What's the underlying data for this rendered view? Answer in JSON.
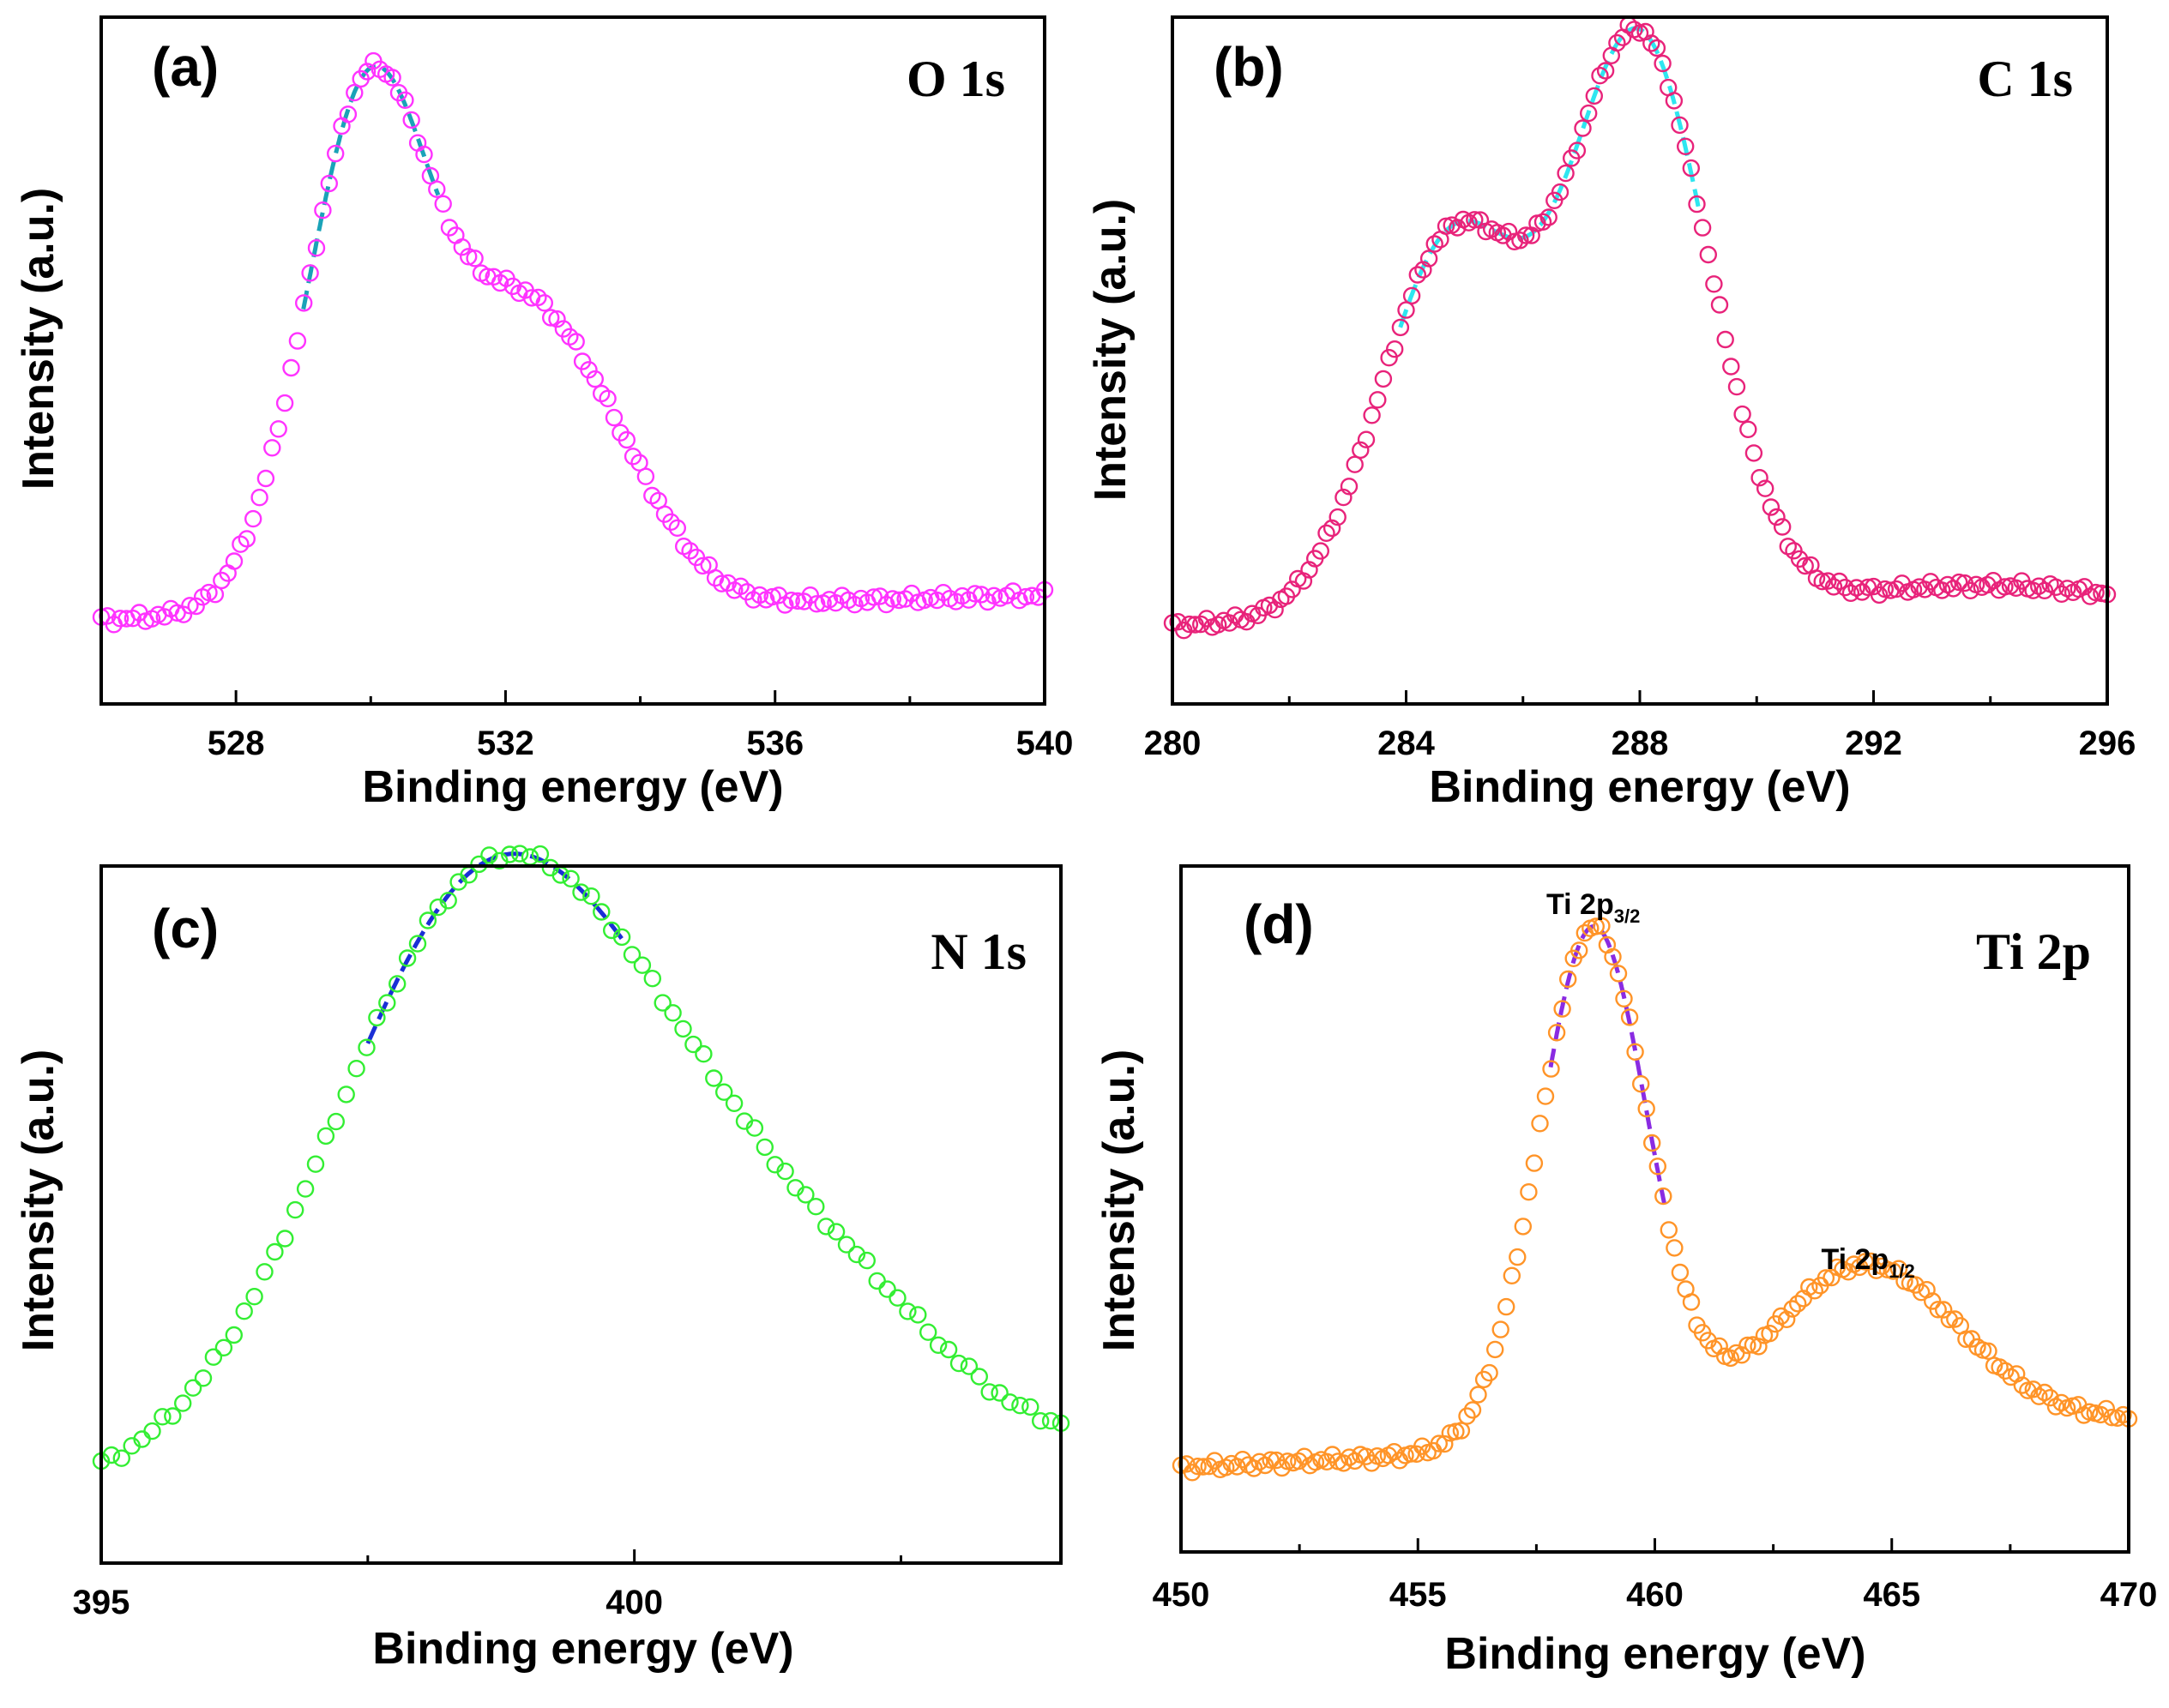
{
  "chart_data": [
    {
      "type": "scatter",
      "panel": "(a)",
      "title": "O 1s",
      "xlabel": "Binding energy (eV)",
      "ylabel": "Intensity (a.u.)",
      "xlim": [
        526,
        540
      ],
      "ylim": [
        0,
        1.14
      ],
      "xticks": [
        528,
        532,
        536,
        540
      ],
      "xtick_labels": [
        "528",
        "532",
        "536",
        "540"
      ],
      "marker_color": "#ff33ff",
      "fit_color": "#1aa3b8",
      "fit_range": [
        529.0,
        531.0
      ],
      "peaks": [
        {
          "center": 530.0,
          "height": 0.88,
          "width": 0.95
        },
        {
          "center": 532.1,
          "height": 0.37,
          "width": 0.9
        },
        {
          "center": 533.4,
          "height": 0.23,
          "width": 0.95
        }
      ],
      "baseline": [
        0.14,
        0.18
      ],
      "n_points": 150,
      "annotations": []
    },
    {
      "type": "scatter",
      "panel": "(b)",
      "title": "C 1s",
      "xlabel": "Binding energy (eV)",
      "ylabel": "Intensity (a.u.)",
      "xlim": [
        280,
        296
      ],
      "ylim": [
        0,
        1.14
      ],
      "xticks": [
        280,
        284,
        288,
        292,
        296
      ],
      "xtick_labels": [
        "280",
        "284",
        "288",
        "292",
        "296"
      ],
      "marker_color": "#e8237a",
      "fit_color": "#2ee6f0",
      "fit_range": [
        283.9,
        289.0
      ],
      "peaks": [
        {
          "center": 284.8,
          "height": 0.63,
          "width": 1.25
        },
        {
          "center": 288.0,
          "height": 0.95,
          "width": 1.2
        },
        {
          "center": 293.6,
          "height": 0.045,
          "width": 2.5
        }
      ],
      "baseline": [
        0.13,
        0.155
      ],
      "n_points": 165,
      "annotations": []
    },
    {
      "type": "scatter",
      "panel": "(c)",
      "title": "N 1s",
      "xlabel": "Binding energy (eV)",
      "ylabel": "Intensity (a.u.)",
      "xlim": [
        395,
        404
      ],
      "ylim": [
        0,
        1.14
      ],
      "xticks": [
        395,
        400
      ],
      "xtick_labels": [
        "395",
        "400"
      ],
      "marker_color": "#33ee33",
      "fit_color": "#1a2fd6",
      "fit_range": [
        397.5,
        399.9
      ],
      "peaks": [
        {
          "center": 398.6,
          "height": 0.93,
          "width": 1.45
        },
        {
          "center": 400.9,
          "height": 0.31,
          "width": 1.3
        },
        {
          "center": 402.4,
          "height": 0.07,
          "width": 0.8
        }
      ],
      "baseline": [
        0.12,
        0.2
      ],
      "n_points": 95,
      "annotations": []
    },
    {
      "type": "scatter",
      "panel": "(d)",
      "title": "Ti 2p",
      "xlabel": "Binding energy (eV)",
      "ylabel": "Intensity (a.u.)",
      "xlim": [
        450,
        470
      ],
      "ylim": [
        0,
        1.14
      ],
      "xticks": [
        450,
        455,
        460,
        465,
        470
      ],
      "xtick_labels": [
        "450",
        "455",
        "460",
        "465",
        "470"
      ],
      "marker_color": "#ff9428",
      "fit_color": "#8a2be2",
      "fit_range": [
        457.8,
        460.2
      ],
      "peaks": [
        {
          "center": 458.7,
          "height": 0.86,
          "width": 1.15
        },
        {
          "center": 464.4,
          "height": 0.28,
          "width": 2.0
        }
      ],
      "baseline": [
        0.14,
        0.22
      ],
      "n_points": 170,
      "annotations": [
        {
          "x": 458.7,
          "y": 1.06,
          "main": "Ti 2p",
          "sub": "3/2"
        },
        {
          "x": 464.5,
          "y": 0.47,
          "main": "Ti 2p",
          "sub": "1/2"
        }
      ]
    }
  ]
}
